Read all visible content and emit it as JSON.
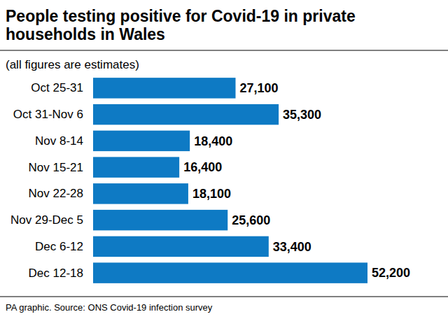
{
  "chart_data": {
    "type": "bar",
    "orientation": "horizontal",
    "title": "People testing positive for Covid-19 in private households in Wales",
    "subtitle": "(all figures are estimates)",
    "source": "PA graphic. Source: ONS Covid-19 infection survey",
    "categories": [
      "Oct 25-31",
      "Oct 31-Nov 6",
      "Nov 8-14",
      "Nov 15-21",
      "Nov 22-28",
      "Nov 29-Dec 5",
      "Dec 6-12",
      "Dec 12-18"
    ],
    "values": [
      27100,
      35300,
      18400,
      16400,
      18100,
      25600,
      33400,
      52200
    ],
    "value_labels": [
      "27,100",
      "35,300",
      "18,400",
      "16,400",
      "18,100",
      "25,600",
      "33,400",
      "52,200"
    ],
    "color": "#0e7ac4",
    "data_labels": true,
    "tick_labels": "y",
    "grid": false
  }
}
